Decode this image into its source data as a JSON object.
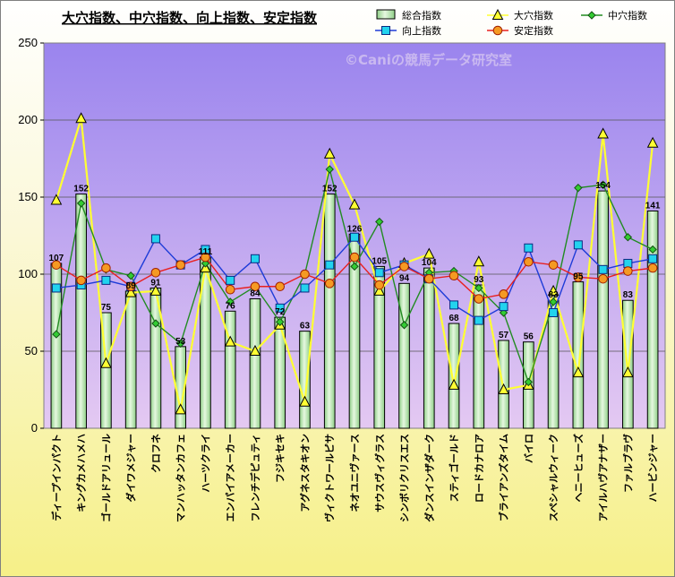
{
  "chart_data": {
    "type": "bar",
    "title": "大穴指数、中穴指数、向上指数、安定指数",
    "watermark": "©Caniの競馬データ研究室",
    "ylim": [
      0,
      250
    ],
    "yticks": [
      0,
      50,
      100,
      150,
      200,
      250
    ],
    "categories": [
      "ディープインパクト",
      "キングカメハメハ",
      "ゴールドアリュール",
      "ダイワメジャー",
      "クロフネ",
      "マンハッタンカフェ",
      "ハーツクライ",
      "エンパイアメーカー",
      "フレンチデピュティ",
      "フジキセキ",
      "アグネスタキオン",
      "ヴィクトワールピサ",
      "ネオユニヴァース",
      "サウスヴィグラス",
      "シンボリクリスエス",
      "ダンスインザダーク",
      "スティゴールド",
      "ロードカナロア",
      "ブライアンズタイム",
      "バイロ",
      "スペシャルウィーク",
      "ヘニーヒューズ",
      "アイルハヴアナザー",
      "ファルブラヴ",
      "ハービンジャー"
    ],
    "series": [
      {
        "name": "総合指数",
        "kind": "bar",
        "color": "#b9e8b0",
        "values": [
          107,
          152,
          75,
          89,
          91,
          53,
          111,
          76,
          84,
          72,
          63,
          152,
          126,
          105,
          94,
          104,
          68,
          93,
          57,
          56,
          83,
          95,
          154,
          83,
          141
        ],
        "labels": [
          "107",
          "152",
          "75",
          "89",
          "91",
          "53",
          "111",
          "76",
          "84",
          "72",
          "63",
          "152",
          "126",
          "105",
          "94",
          "104",
          "68",
          "93",
          "57",
          "56",
          "83",
          "95",
          "154",
          "83",
          "141"
        ]
      },
      {
        "name": "大穴指数",
        "kind": "line",
        "color": "#ffff33",
        "marker": "triangle",
        "values": [
          148,
          201,
          42,
          88,
          89,
          12,
          104,
          56,
          50,
          67,
          17,
          178,
          145,
          89,
          107,
          113,
          28,
          108,
          25,
          28,
          89,
          36,
          191,
          36,
          185
        ]
      },
      {
        "name": "中穴指数",
        "kind": "line",
        "color": "#228b22",
        "marker": "diamond",
        "values": [
          61,
          146,
          103,
          99,
          68,
          55,
          107,
          82,
          92,
          69,
          100,
          168,
          105,
          134,
          67,
          101,
          102,
          91,
          75,
          30,
          82,
          156,
          158,
          124,
          116
        ]
      },
      {
        "name": "向上指数",
        "kind": "line",
        "color": "#1e3cd8",
        "marker": "square",
        "values": [
          91,
          93,
          96,
          92,
          123,
          106,
          116,
          96,
          110,
          78,
          91,
          106,
          124,
          101,
          106,
          97,
          80,
          70,
          79,
          117,
          75,
          119,
          103,
          107,
          110
        ]
      },
      {
        "name": "安定指数",
        "kind": "line",
        "color": "#e82020",
        "marker": "circle",
        "values": [
          106,
          96,
          104,
          92,
          101,
          106,
          111,
          90,
          92,
          92,
          100,
          94,
          111,
          93,
          105,
          97,
          99,
          84,
          87,
          108,
          106,
          98,
          97,
          102,
          104
        ]
      }
    ],
    "colors": {
      "plot_top": "#9a84ee",
      "plot_bottom": "#e4c9f2",
      "bar_fill": "#b9e8b0",
      "bar_edge": "#000000"
    },
    "grid": true,
    "legend_position": "top-right"
  }
}
